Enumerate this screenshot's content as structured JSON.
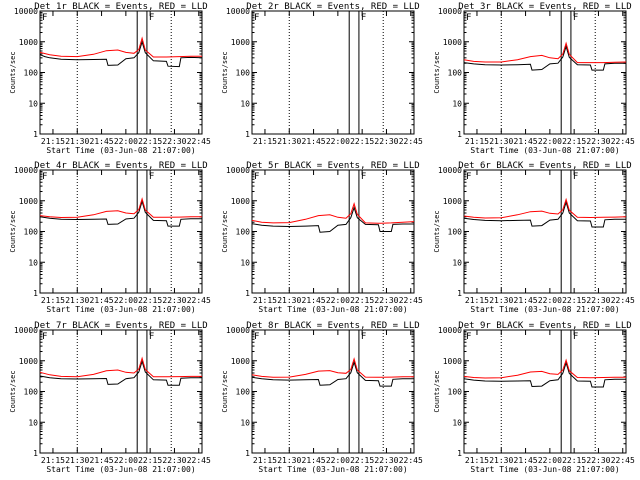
{
  "figure": {
    "time_ticks": [
      "21:15",
      "21:30",
      "21:45",
      "22:00",
      "22:15",
      "22:30",
      "22:45"
    ],
    "y_ticks": [
      "1",
      "10",
      "100",
      "1000",
      "10000"
    ],
    "xlabel": "Start Time (03-Jun-08 21:07:00)",
    "ylabel": "Counts/sec",
    "event_colors": {
      "events": "#000000",
      "lld": "#ff0000"
    },
    "corner_mark": "F"
  },
  "chart_data": [
    {
      "type": "line",
      "title": "Det 1r BLACK = Events, RED = LLD",
      "corner_mark": "F",
      "xlabel": "Start Time (03-Jun-08 21:07:00)",
      "ylabel": "Counts/sec",
      "ylim": [
        1,
        10000
      ],
      "yscale": "log",
      "xlim": [
        "21:07",
        "22:47"
      ],
      "series": [
        {
          "name": "Events",
          "color": "#000000",
          "x": [
            "21:07",
            "21:10",
            "21:13",
            "21:20",
            "21:25",
            "21:30",
            "21:40",
            "21:48",
            "21:49",
            "21:55",
            "22:00",
            "22:05",
            "22:08",
            "22:10",
            "22:12",
            "22:17",
            "22:25",
            "22:26",
            "22:33",
            "22:34",
            "22:40",
            "22:47"
          ],
          "values": [
            380,
            330,
            300,
            270,
            265,
            260,
            265,
            270,
            170,
            175,
            280,
            300,
            440,
            1000,
            440,
            240,
            230,
            160,
            155,
            300,
            310,
            300
          ]
        },
        {
          "name": "LLD",
          "color": "#ff0000",
          "x": [
            "21:07",
            "21:13",
            "21:20",
            "21:30",
            "21:40",
            "21:48",
            "21:55",
            "22:00",
            "22:05",
            "22:08",
            "22:10",
            "22:12",
            "22:17",
            "22:25",
            "22:33",
            "22:40",
            "22:47"
          ],
          "values": [
            450,
            380,
            340,
            330,
            390,
            510,
            540,
            450,
            420,
            560,
            1300,
            540,
            320,
            320,
            330,
            340,
            340
          ]
        }
      ]
    },
    {
      "type": "line",
      "title": "Det 2r BLACK = Events, RED = LLD",
      "corner_mark": "F",
      "xlabel": "",
      "ylabel": "Counts/sec",
      "ylim": [
        1,
        10000
      ],
      "yscale": "log",
      "xlim": [
        "21:07",
        "22:47"
      ],
      "series": []
    },
    {
      "type": "line",
      "title": "Det 3r BLACK = Events, RED = LLD",
      "corner_mark": "F",
      "xlabel": "Start Time (03-Jun-08 21:07:00)",
      "ylabel": "Counts/sec",
      "ylim": [
        1,
        10000
      ],
      "yscale": "log",
      "xlim": [
        "21:07",
        "22:47"
      ],
      "series": [
        {
          "name": "Events",
          "color": "#000000",
          "x": [
            "21:07",
            "21:13",
            "21:20",
            "21:30",
            "21:40",
            "21:48",
            "21:49",
            "21:55",
            "22:00",
            "22:05",
            "22:08",
            "22:10",
            "22:12",
            "22:17",
            "22:25",
            "22:26",
            "22:33",
            "22:34",
            "22:40",
            "22:47"
          ],
          "values": [
            210,
            190,
            180,
            175,
            180,
            185,
            120,
            125,
            190,
            200,
            320,
            700,
            310,
            180,
            175,
            120,
            120,
            190,
            200,
            200
          ]
        },
        {
          "name": "LLD",
          "color": "#ff0000",
          "x": [
            "21:07",
            "21:13",
            "21:20",
            "21:30",
            "21:40",
            "21:48",
            "21:55",
            "22:00",
            "22:05",
            "22:08",
            "22:10",
            "22:12",
            "22:17",
            "22:25",
            "22:33",
            "22:40",
            "22:47"
          ],
          "values": [
            260,
            230,
            220,
            220,
            260,
            330,
            360,
            300,
            280,
            400,
            900,
            390,
            210,
            210,
            210,
            215,
            220
          ]
        }
      ]
    },
    {
      "type": "line",
      "title": "Det 4r BLACK = Events, RED = LLD",
      "corner_mark": "F",
      "xlabel": "Start Time (03-Jun-08 21:07:00)",
      "ylabel": "Counts/sec",
      "ylim": [
        1,
        10000
      ],
      "yscale": "log",
      "xlim": [
        "21:07",
        "22:47"
      ],
      "series": [
        {
          "name": "Events",
          "color": "#000000",
          "x": [
            "21:07",
            "21:13",
            "21:20",
            "21:30",
            "21:40",
            "21:48",
            "21:49",
            "21:55",
            "22:00",
            "22:05",
            "22:08",
            "22:10",
            "22:12",
            "22:17",
            "22:25",
            "22:26",
            "22:33",
            "22:34",
            "22:40",
            "22:47"
          ],
          "values": [
            300,
            270,
            250,
            245,
            250,
            255,
            170,
            175,
            255,
            270,
            420,
            950,
            420,
            230,
            225,
            150,
            150,
            250,
            260,
            260
          ]
        },
        {
          "name": "LLD",
          "color": "#ff0000",
          "x": [
            "21:07",
            "21:13",
            "21:20",
            "21:30",
            "21:40",
            "21:48",
            "21:55",
            "22:00",
            "22:05",
            "22:08",
            "22:10",
            "22:12",
            "22:17",
            "22:25",
            "22:33",
            "22:40",
            "22:47"
          ],
          "values": [
            330,
            300,
            285,
            290,
            350,
            450,
            470,
            400,
            380,
            520,
            1150,
            500,
            290,
            290,
            295,
            300,
            300
          ]
        }
      ]
    },
    {
      "type": "line",
      "title": "Det 5r BLACK = Events, RED = LLD",
      "corner_mark": "F",
      "xlabel": "Start Time (03-Jun-08 21:07:00)",
      "ylabel": "Counts/sec",
      "ylim": [
        1,
        10000
      ],
      "yscale": "log",
      "xlim": [
        "21:07",
        "22:47"
      ],
      "series": [
        {
          "name": "Events",
          "color": "#000000",
          "x": [
            "21:07",
            "21:13",
            "21:20",
            "21:30",
            "21:40",
            "21:48",
            "21:49",
            "21:55",
            "22:00",
            "22:05",
            "22:08",
            "22:10",
            "22:12",
            "22:17",
            "22:25",
            "22:26",
            "22:33",
            "22:34",
            "22:40",
            "22:47"
          ],
          "values": [
            180,
            160,
            150,
            145,
            150,
            155,
            95,
            100,
            160,
            170,
            280,
            600,
            280,
            170,
            165,
            100,
            100,
            170,
            175,
            175
          ]
        },
        {
          "name": "LLD",
          "color": "#ff0000",
          "x": [
            "21:07",
            "21:13",
            "21:20",
            "21:30",
            "21:40",
            "21:48",
            "21:55",
            "22:00",
            "22:05",
            "22:08",
            "22:10",
            "22:12",
            "22:17",
            "22:25",
            "22:33",
            "22:40",
            "22:47"
          ],
          "values": [
            230,
            200,
            190,
            195,
            250,
            330,
            350,
            290,
            270,
            380,
            800,
            360,
            190,
            185,
            190,
            200,
            210
          ]
        }
      ]
    },
    {
      "type": "line",
      "title": "Det 6r BLACK = Events, RED = LLD",
      "corner_mark": "F",
      "xlabel": "Start Time (03-Jun-08 21:07:00)",
      "ylabel": "Counts/sec",
      "ylim": [
        1,
        10000
      ],
      "yscale": "log",
      "xlim": [
        "21:07",
        "22:47"
      ],
      "series": [
        {
          "name": "Events",
          "color": "#000000",
          "x": [
            "21:07",
            "21:13",
            "21:20",
            "21:30",
            "21:40",
            "21:48",
            "21:49",
            "21:55",
            "22:00",
            "22:05",
            "22:08",
            "22:10",
            "22:12",
            "22:17",
            "22:25",
            "22:26",
            "22:33",
            "22:34",
            "22:40",
            "22:47"
          ],
          "values": [
            270,
            245,
            230,
            225,
            230,
            235,
            150,
            155,
            235,
            250,
            400,
            900,
            400,
            225,
            220,
            140,
            140,
            240,
            250,
            250
          ]
        },
        {
          "name": "LLD",
          "color": "#ff0000",
          "x": [
            "21:07",
            "21:13",
            "21:20",
            "21:30",
            "21:40",
            "21:48",
            "21:55",
            "22:00",
            "22:05",
            "22:08",
            "22:10",
            "22:12",
            "22:17",
            "22:25",
            "22:33",
            "22:40",
            "22:47"
          ],
          "values": [
            320,
            290,
            275,
            280,
            350,
            440,
            460,
            390,
            370,
            510,
            1100,
            490,
            290,
            285,
            290,
            295,
            300
          ]
        }
      ]
    },
    {
      "type": "line",
      "title": "Det 7r BLACK = Events, RED = LLD",
      "corner_mark": "F",
      "xlabel": "Start Time (03-Jun-08 21:07:00)",
      "ylabel": "Counts/sec",
      "ylim": [
        1,
        10000
      ],
      "yscale": "log",
      "xlim": [
        "21:07",
        "22:47"
      ],
      "series": [
        {
          "name": "Events",
          "color": "#000000",
          "x": [
            "21:07",
            "21:13",
            "21:20",
            "21:30",
            "21:40",
            "21:48",
            "21:49",
            "21:55",
            "22:00",
            "22:05",
            "22:08",
            "22:10",
            "22:12",
            "22:17",
            "22:25",
            "22:26",
            "22:33",
            "22:34",
            "22:40",
            "22:47"
          ],
          "values": [
            320,
            280,
            260,
            255,
            260,
            265,
            170,
            175,
            260,
            280,
            430,
            950,
            430,
            240,
            235,
            160,
            160,
            270,
            280,
            280
          ]
        },
        {
          "name": "LLD",
          "color": "#ff0000",
          "x": [
            "21:07",
            "21:13",
            "21:20",
            "21:30",
            "21:40",
            "21:48",
            "21:55",
            "22:00",
            "22:05",
            "22:08",
            "22:10",
            "22:12",
            "22:17",
            "22:25",
            "22:33",
            "22:40",
            "22:47"
          ],
          "values": [
            420,
            350,
            310,
            300,
            360,
            470,
            500,
            420,
            400,
            540,
            1200,
            520,
            300,
            300,
            305,
            310,
            310
          ]
        }
      ]
    },
    {
      "type": "line",
      "title": "Det 8r BLACK = Events, RED = LLD",
      "corner_mark": "F",
      "xlabel": "Start Time (03-Jun-08 21:07:00)",
      "ylabel": "Counts/sec",
      "ylim": [
        1,
        10000
      ],
      "yscale": "log",
      "xlim": [
        "21:07",
        "22:47"
      ],
      "series": [
        {
          "name": "Events",
          "color": "#000000",
          "x": [
            "21:07",
            "21:13",
            "21:20",
            "21:30",
            "21:40",
            "21:48",
            "21:49",
            "21:55",
            "22:00",
            "22:05",
            "22:08",
            "22:10",
            "22:12",
            "22:17",
            "22:25",
            "22:26",
            "22:33",
            "22:34",
            "22:40",
            "22:47"
          ],
          "values": [
            290,
            260,
            240,
            235,
            240,
            245,
            160,
            165,
            245,
            260,
            410,
            900,
            410,
            230,
            225,
            150,
            150,
            250,
            260,
            260
          ]
        },
        {
          "name": "LLD",
          "color": "#ff0000",
          "x": [
            "21:07",
            "21:13",
            "21:20",
            "21:30",
            "21:40",
            "21:48",
            "21:55",
            "22:00",
            "22:05",
            "22:08",
            "22:10",
            "22:12",
            "22:17",
            "22:25",
            "22:33",
            "22:40",
            "22:47"
          ],
          "values": [
            350,
            310,
            290,
            295,
            360,
            460,
            480,
            410,
            390,
            520,
            1150,
            500,
            295,
            290,
            295,
            300,
            300
          ]
        }
      ]
    },
    {
      "type": "line",
      "title": "Det 9r BLACK = Events, RED = LLD",
      "corner_mark": "F",
      "xlabel": "Start Time (03-Jun-08 21:07:00)",
      "ylabel": "Counts/sec",
      "ylim": [
        1,
        10000
      ],
      "yscale": "log",
      "xlim": [
        "21:07",
        "22:47"
      ],
      "series": [
        {
          "name": "Events",
          "color": "#000000",
          "x": [
            "21:07",
            "21:13",
            "21:20",
            "21:30",
            "21:40",
            "21:48",
            "21:49",
            "21:55",
            "22:00",
            "22:05",
            "22:08",
            "22:10",
            "22:12",
            "22:17",
            "22:25",
            "22:26",
            "22:33",
            "22:34",
            "22:40",
            "22:47"
          ],
          "values": [
            260,
            235,
            220,
            215,
            220,
            225,
            145,
            150,
            225,
            240,
            390,
            850,
            390,
            220,
            215,
            140,
            140,
            240,
            250,
            250
          ]
        },
        {
          "name": "LLD",
          "color": "#ff0000",
          "x": [
            "21:07",
            "21:13",
            "21:20",
            "21:30",
            "21:40",
            "21:48",
            "21:55",
            "22:00",
            "22:05",
            "22:08",
            "22:10",
            "22:12",
            "22:17",
            "22:25",
            "22:33",
            "22:40",
            "22:47"
          ],
          "values": [
            310,
            285,
            275,
            280,
            340,
            430,
            450,
            380,
            360,
            500,
            1050,
            470,
            285,
            280,
            285,
            290,
            290
          ]
        }
      ]
    }
  ]
}
